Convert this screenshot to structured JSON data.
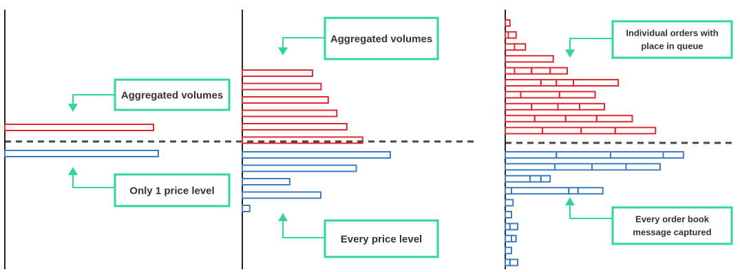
{
  "colors": {
    "ask": "#e0262e",
    "bid": "#3a7cc4",
    "accent": "#2ed6a0",
    "axis": "#222222",
    "divider": "#444444",
    "text": "#333333"
  },
  "panels": [
    {
      "id": "panel-one-level",
      "ask_levels": [
        [
          1
        ]
      ],
      "bid_levels": [
        [
          1
        ]
      ],
      "callouts": [
        {
          "id": "callout-aggregated-volumes-1",
          "lines": [
            "Aggregated volumes"
          ],
          "points_to": "ask-bars"
        },
        {
          "id": "callout-only-1-price-level",
          "lines": [
            "Only 1 price level"
          ],
          "points_to": "bid-bars"
        }
      ]
    },
    {
      "id": "panel-every-level",
      "ask_levels": [
        [
          0.49
        ],
        [
          0.55
        ],
        [
          0.6
        ],
        [
          0.66
        ],
        [
          0.73
        ],
        [
          0.84
        ]
      ],
      "bid_levels": [
        [
          1
        ],
        [
          0.77
        ],
        [
          0.32
        ],
        [
          0.53
        ],
        [
          0.05
        ]
      ],
      "callouts": [
        {
          "id": "callout-aggregated-volumes-2",
          "lines": [
            "Aggregated volumes"
          ],
          "points_to": "ask-bars"
        },
        {
          "id": "callout-every-price-level",
          "lines": [
            "Every price level"
          ],
          "points_to": "bid-bars"
        }
      ]
    },
    {
      "id": "panel-individual-orders",
      "ask_levels": [
        [
          0.03
        ],
        [
          0.02,
          0.05
        ],
        [
          0.06,
          0.07
        ],
        [
          0.31
        ],
        [
          0.06,
          0.11,
          0.12,
          0.11
        ],
        [
          0.23,
          0.1,
          0.11,
          0.29
        ],
        [
          0.1,
          0.25,
          0.23
        ],
        [
          0.17,
          0.17,
          0.14,
          0.16
        ],
        [
          0.19,
          0.2,
          0.2,
          0.23
        ],
        [
          0.24,
          0.25,
          0.22,
          0.26
        ]
      ],
      "bid_levels": [
        [
          0.33,
          0.35,
          0.34,
          0.13
        ],
        [
          0.32,
          0.24,
          0.22,
          0.22
        ],
        [
          0.16,
          0.07,
          0.06
        ],
        [
          0.04,
          0.37,
          0.06,
          0.16
        ],
        [
          0.05
        ],
        [
          0.04
        ],
        [
          0.03,
          0.05
        ],
        [
          0.04,
          0.03
        ],
        [
          0.04
        ],
        [
          0.03,
          0.05
        ]
      ],
      "callouts": [
        {
          "id": "callout-individual-orders",
          "lines": [
            "Individual orders with",
            "place in queue"
          ],
          "points_to": "ask-bars"
        },
        {
          "id": "callout-every-order-message",
          "lines": [
            "Every order book",
            "message captured"
          ],
          "points_to": "bid-bars"
        }
      ]
    }
  ]
}
